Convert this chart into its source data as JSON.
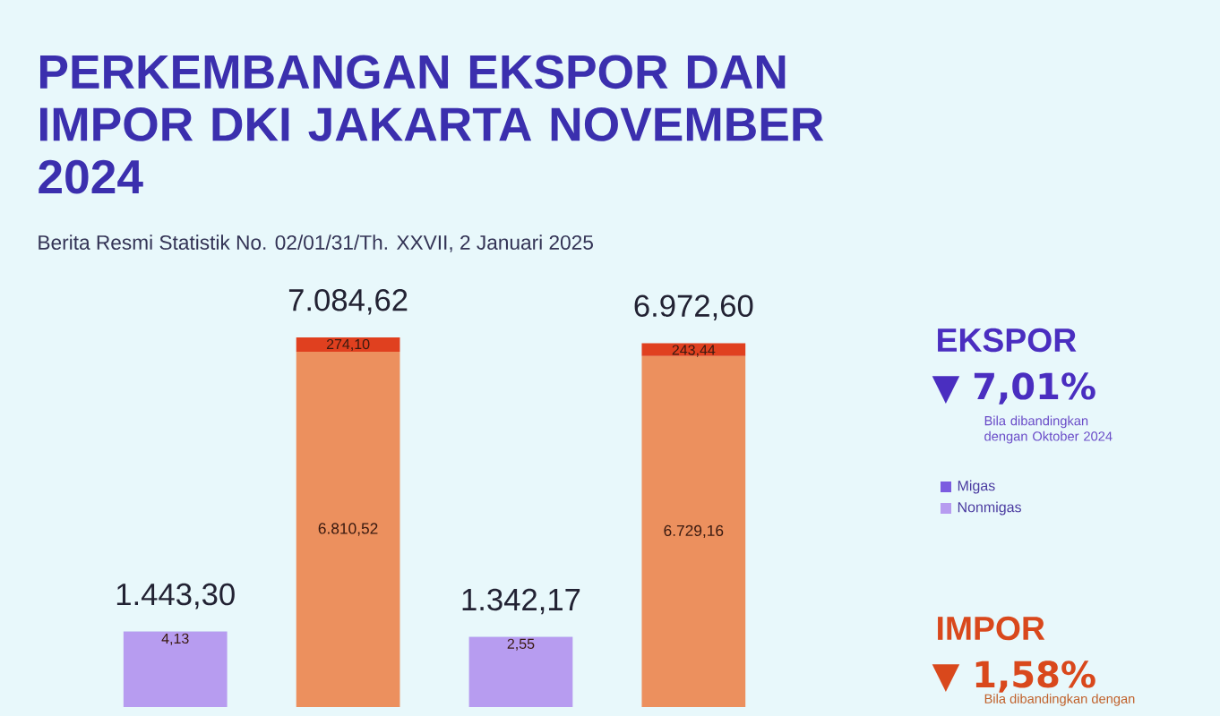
{
  "chart_data": {
    "type": "bar",
    "title": "PERKEMBANGAN EKSPOR DAN IMPOR DKI JAKARTA NOVEMBER 2024",
    "subtitle": "Berita Resmi Statistik No. 02/01/31/Th. XXVII, 2 Januari 2025",
    "stacked": true,
    "categories": [
      null,
      null,
      null,
      null
    ],
    "series": [
      {
        "name": "Nonmigas",
        "color": "#b79cf0",
        "colors": [
          "#b79cf0",
          "#ec905e",
          "#b79cf0",
          "#ec905e"
        ],
        "values": [
          1439.17,
          6810.52,
          1339.62,
          6729.16
        ],
        "value_labels": [
          null,
          "6.810,52",
          null,
          "6.729,16"
        ]
      },
      {
        "name": "Migas",
        "color": "#7b5ce0",
        "colors": [
          "#7b5ce0",
          "#e0401f",
          "#7b5ce0",
          "#e0401f"
        ],
        "values": [
          4.13,
          274.1,
          2.55,
          243.44
        ],
        "value_labels": [
          "4,13",
          "274,10",
          "2,55",
          "243,44"
        ]
      }
    ],
    "totals": [
      "1.443,30",
      "7.084,62",
      "1.342,17",
      "6.972,60"
    ],
    "legend": "right",
    "annotations": [
      "EKSPOR",
      "▼ 7,01%",
      "Bila dibandingkan dengan Oktober 2024",
      "IMPOR",
      "▼ 1,58%",
      "Bila dibandingkan dengan"
    ]
  }
}
